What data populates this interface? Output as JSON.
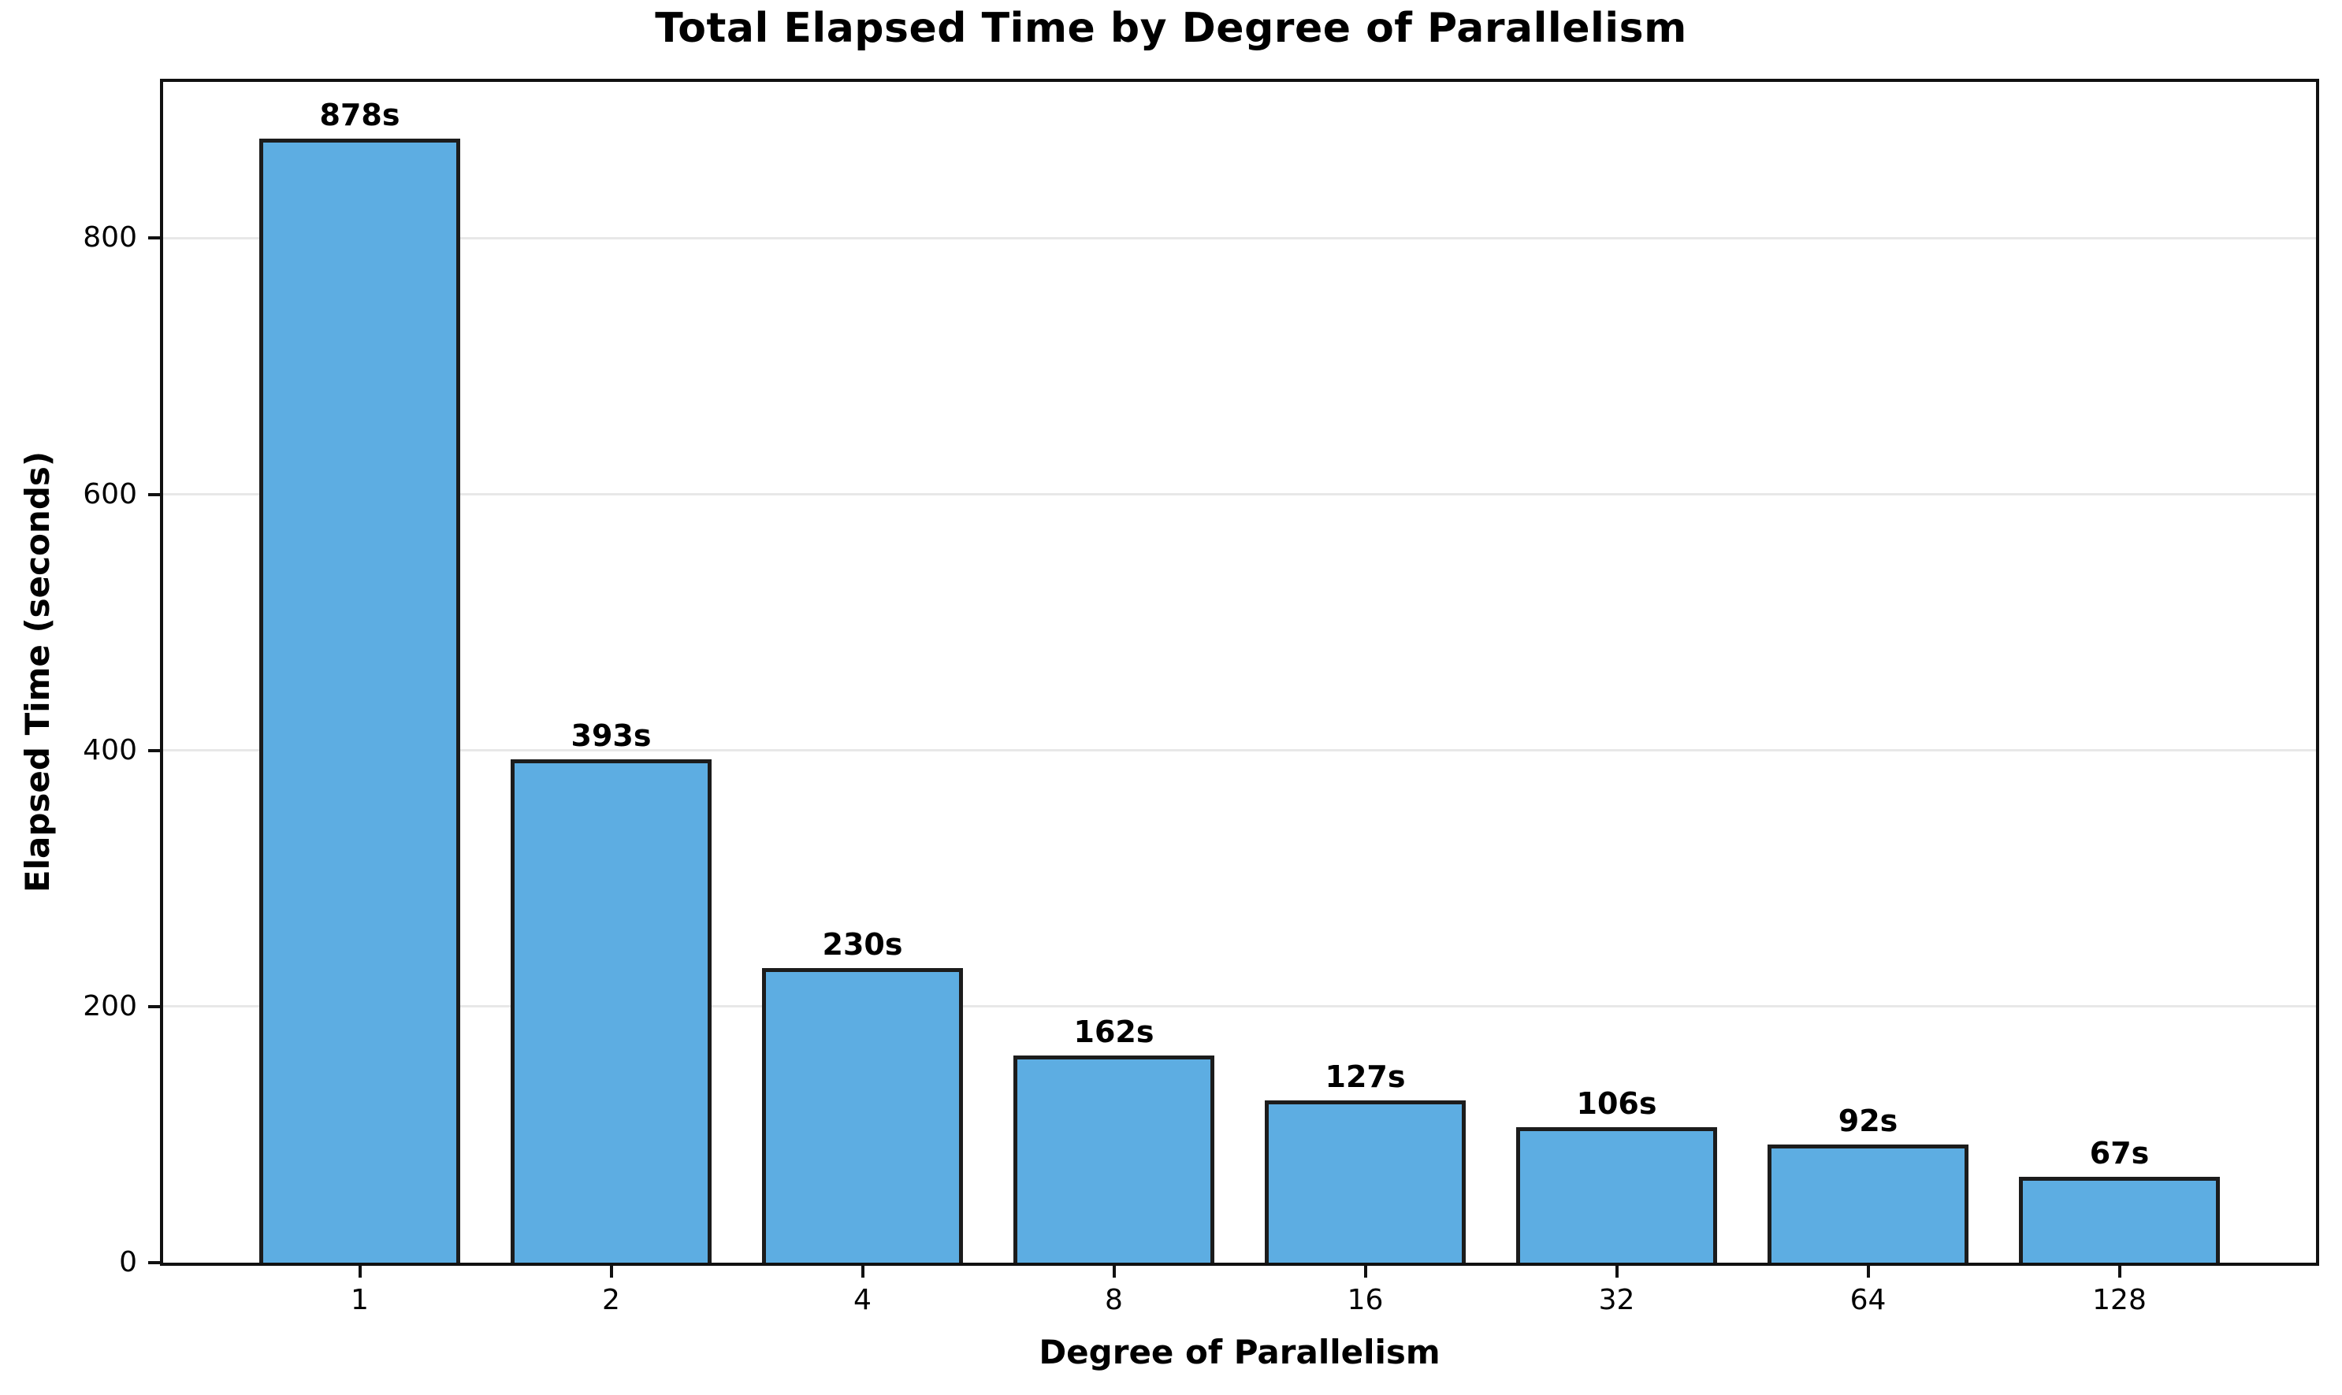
{
  "chart_data": {
    "type": "bar",
    "title": "Total Elapsed Time by Degree of Parallelism",
    "xlabel": "Degree of Parallelism",
    "ylabel": "Elapsed Time (seconds)",
    "categories": [
      "1",
      "2",
      "4",
      "8",
      "16",
      "32",
      "64",
      "128"
    ],
    "values": [
      878,
      393,
      230,
      162,
      127,
      106,
      92,
      67
    ],
    "bar_labels": [
      "878s",
      "393s",
      "230s",
      "162s",
      "127s",
      "106s",
      "92s",
      "67s"
    ],
    "yticks": [
      0,
      200,
      400,
      600,
      800
    ],
    "ylim": [
      0,
      922
    ],
    "grid": "horizontal",
    "legend": "none",
    "colors": {
      "bar_fill": "#5dade2",
      "bar_edge": "#1c1c1c",
      "gridline": "#e8e8e8",
      "spine": "#111111",
      "text": "#000000",
      "background": "#ffffff"
    }
  }
}
